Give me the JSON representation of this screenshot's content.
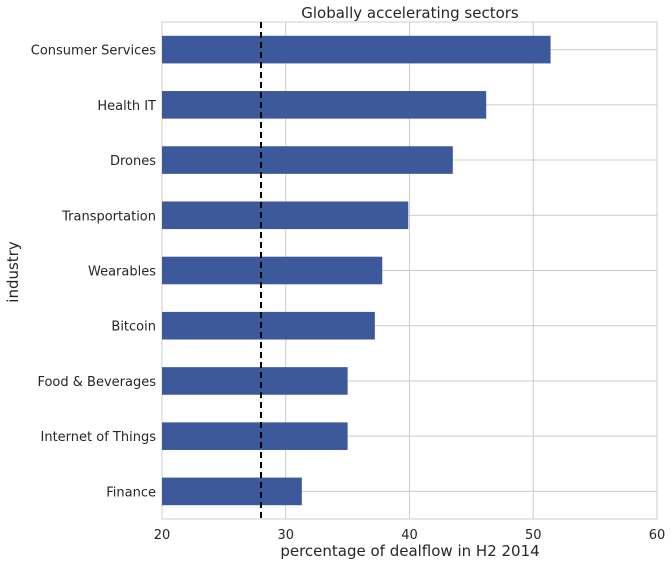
{
  "chart_data": {
    "type": "bar",
    "orientation": "horizontal",
    "title": "Globally accelerating sectors",
    "xlabel": "percentage of dealflow in H2 2014",
    "ylabel": "industry",
    "categories": [
      "Consumer Services",
      "Health IT",
      "Drones",
      "Transportation",
      "Wearables",
      "Bitcoin",
      "Food & Beverages",
      "Internet of Things",
      "Finance"
    ],
    "values": [
      51.4,
      46.2,
      43.5,
      39.9,
      37.8,
      37.2,
      35.0,
      35.0,
      31.3
    ],
    "xlim": [
      20,
      60
    ],
    "xticks": [
      20,
      30,
      40,
      50,
      60
    ],
    "reference_line": {
      "x": 28,
      "style": "dashed",
      "color": "#000000"
    },
    "bar_color": "#3c5a9b",
    "grid": true
  }
}
